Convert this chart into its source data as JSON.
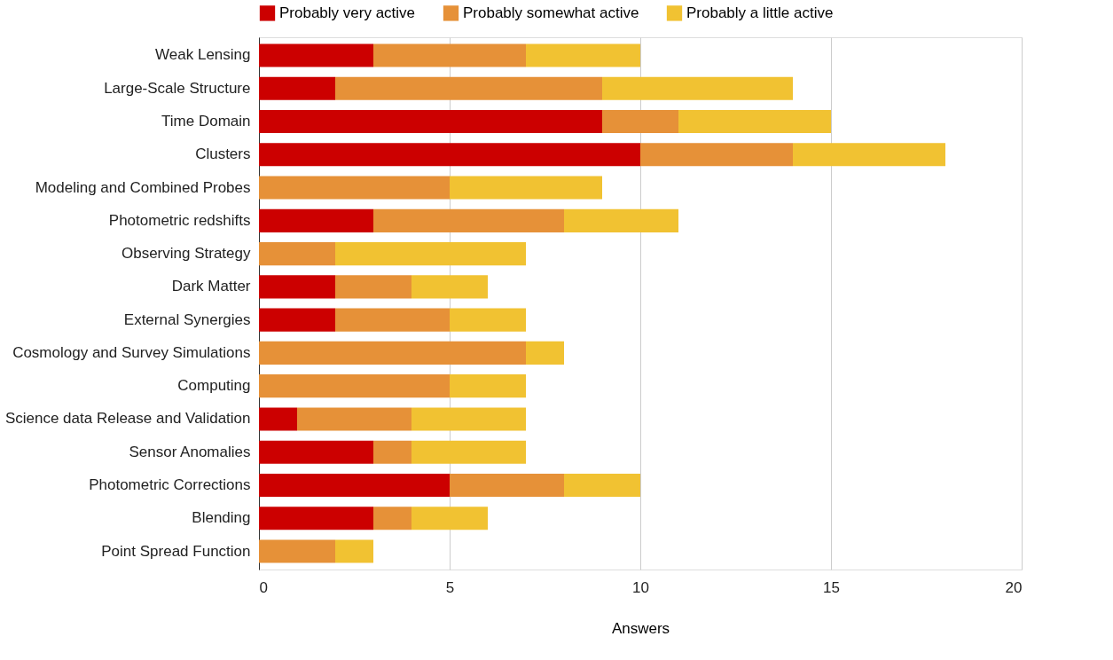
{
  "chart_data": {
    "type": "bar",
    "orientation": "horizontal",
    "stacked": true,
    "xlabel": "Answers",
    "categories": [
      "Weak Lensing",
      "Large-Scale Structure",
      "Time Domain",
      "Clusters",
      "Modeling and Combined Probes",
      "Photometric redshifts",
      "Observing Strategy",
      "Dark Matter",
      "External Synergies",
      "Cosmology and Survey Simulations",
      "Computing",
      "Science data Release and Validation",
      "Sensor Anomalies",
      "Photometric Corrections",
      "Blending",
      "Point Spread Function"
    ],
    "series": [
      {
        "name": "Probably very active",
        "color": "#cc0000",
        "values": [
          3,
          2,
          9,
          10,
          0,
          3,
          0,
          2,
          2,
          0,
          0,
          1,
          3,
          5,
          3,
          0
        ]
      },
      {
        "name": "Probably somewhat active",
        "color": "#e69138",
        "values": [
          4,
          7,
          2,
          4,
          5,
          5,
          2,
          2,
          3,
          7,
          5,
          3,
          1,
          3,
          1,
          2
        ]
      },
      {
        "name": "Probably a little active",
        "color": "#f1c232",
        "values": [
          3,
          5,
          4,
          4,
          4,
          3,
          5,
          2,
          2,
          1,
          2,
          3,
          3,
          2,
          2,
          1
        ]
      }
    ],
    "xlim": [
      0,
      20
    ],
    "xticks": [
      0,
      5,
      10,
      15,
      20
    ],
    "grid": "x",
    "legend": "top"
  }
}
